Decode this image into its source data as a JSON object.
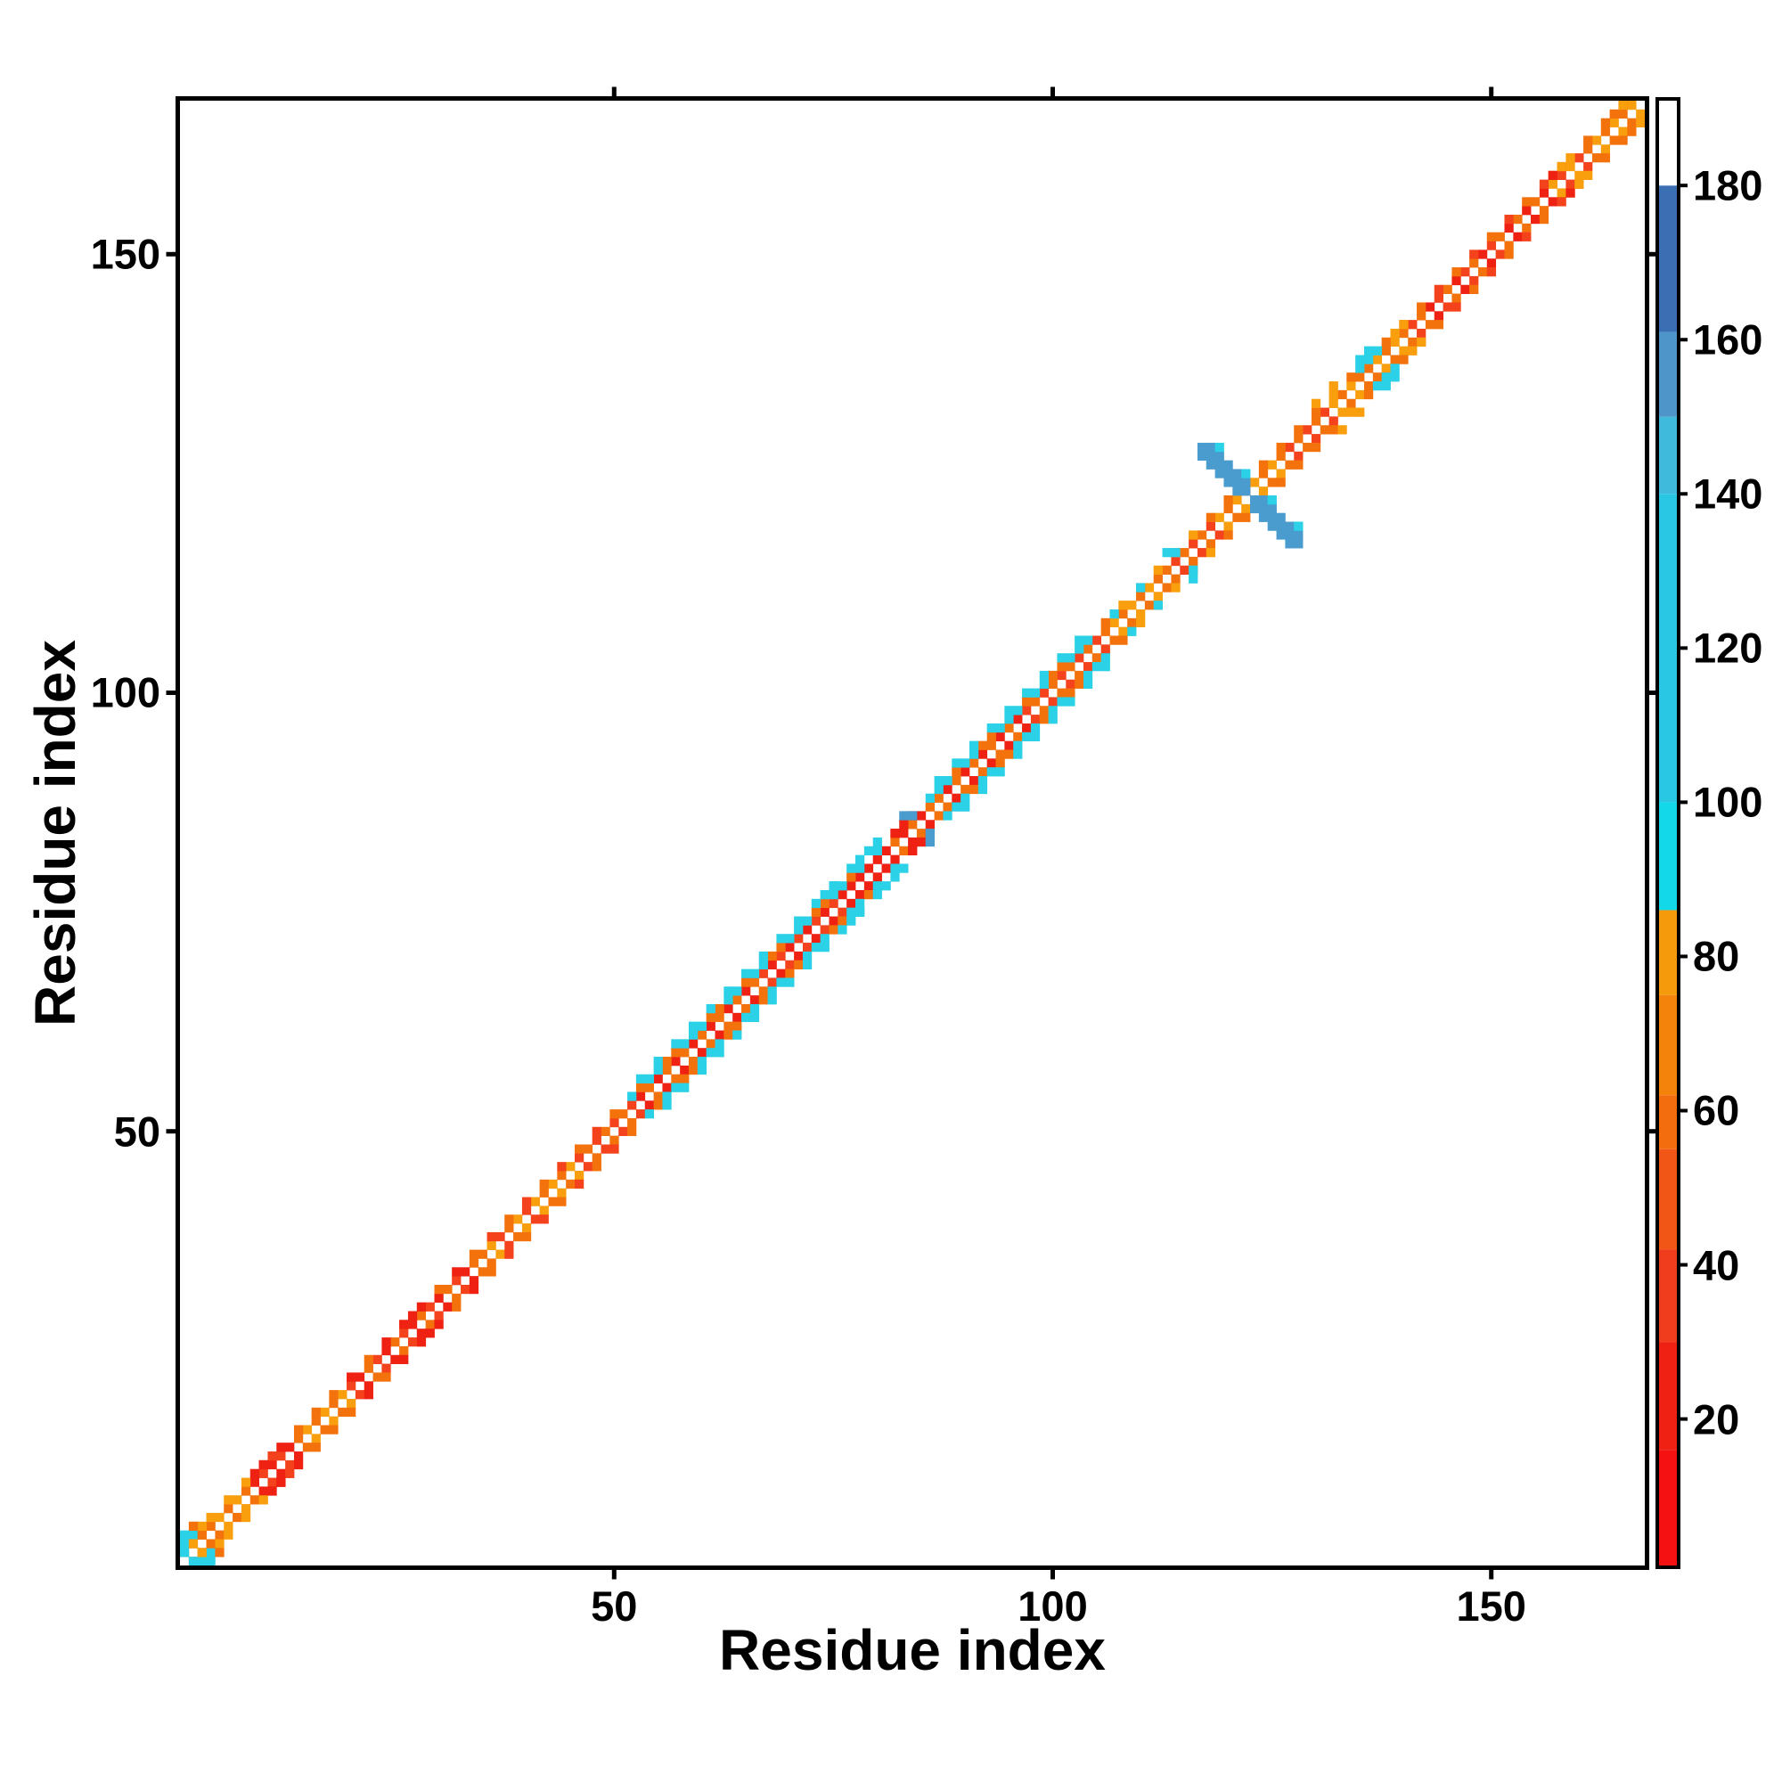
{
  "chart_data": {
    "type": "heatmap",
    "title": "",
    "xlabel": "Residue index",
    "ylabel": "Residue index",
    "x_range": [
      1,
      167
    ],
    "y_range": [
      1,
      167
    ],
    "xticks": [
      50,
      100,
      150
    ],
    "yticks": [
      50,
      100,
      150
    ],
    "grid": false,
    "legend_position": "right-colorbar",
    "colorbar": {
      "vmin": 1,
      "vmax": 191,
      "ticks": [
        20,
        40,
        60,
        80,
        100,
        120,
        140,
        160,
        180
      ],
      "bands": [
        {
          "lo": 1,
          "hi": 16,
          "color": "#f51111"
        },
        {
          "lo": 16,
          "hi": 30,
          "color": "#ee2113"
        },
        {
          "lo": 30,
          "hi": 42,
          "color": "#ef3d1d"
        },
        {
          "lo": 42,
          "hi": 55,
          "color": "#f25617"
        },
        {
          "lo": 55,
          "hi": 62,
          "color": "#f36d0e"
        },
        {
          "lo": 62,
          "hi": 75,
          "color": "#f4830b"
        },
        {
          "lo": 75,
          "hi": 86,
          "color": "#f59b0b"
        },
        {
          "lo": 86,
          "hi": 100,
          "color": "#12d8e9"
        },
        {
          "lo": 100,
          "hi": 140,
          "color": "#2ac7e2"
        },
        {
          "lo": 140,
          "hi": 150,
          "color": "#3fb9dc"
        },
        {
          "lo": 150,
          "hi": 161,
          "color": "#4e96c9"
        },
        {
          "lo": 161,
          "hi": 180,
          "color": "#3a6fb4"
        },
        {
          "lo": 180,
          "hi": 191,
          "color": "#ffffff"
        }
      ]
    },
    "palette": {
      "red": "#ee2113",
      "redOrange": "#f4431c",
      "orange": "#f4720c",
      "amber": "#f99e0c",
      "cyan": "#2bd1e6",
      "blue": "#4a9ccf"
    },
    "symmetric": true,
    "diagonal_runs": [
      {
        "o": 1,
        "s": 1,
        "e": 8,
        "c": [
          "amber",
          "orange"
        ]
      },
      {
        "o": 1,
        "s": 9,
        "e": 13,
        "c": [
          "red",
          "redOrange"
        ]
      },
      {
        "o": 1,
        "s": 14,
        "e": 19,
        "c": [
          "orange",
          "amber"
        ]
      },
      {
        "o": 1,
        "s": 20,
        "e": 34,
        "c": [
          "redOrange",
          "red",
          "orange"
        ]
      },
      {
        "o": 1,
        "s": 35,
        "e": 40,
        "c": [
          "orange",
          "amber",
          "redOrange"
        ]
      },
      {
        "o": 1,
        "s": 41,
        "e": 45,
        "c": [
          "amber",
          "orange"
        ]
      },
      {
        "o": 1,
        "s": 46,
        "e": 52,
        "c": [
          "redOrange",
          "orange"
        ]
      },
      {
        "o": 1,
        "s": 53,
        "e": 66,
        "c": [
          "red",
          "orange"
        ]
      },
      {
        "o": 1,
        "s": 67,
        "e": 75,
        "c": [
          "redOrange",
          "red"
        ]
      },
      {
        "o": 1,
        "s": 76,
        "e": 80,
        "c": [
          "red"
        ]
      },
      {
        "o": 1,
        "s": 81,
        "e": 86,
        "c": [
          "red",
          "orange"
        ]
      },
      {
        "o": 1,
        "s": 87,
        "e": 96,
        "c": [
          "orange",
          "red"
        ]
      },
      {
        "o": 1,
        "s": 97,
        "e": 105,
        "c": [
          "redOrange",
          "orange"
        ]
      },
      {
        "o": 1,
        "s": 106,
        "e": 112,
        "c": [
          "orange",
          "amber"
        ]
      },
      {
        "o": 1,
        "s": 113,
        "e": 118,
        "c": [
          "orange",
          "redOrange"
        ]
      },
      {
        "o": 1,
        "s": 119,
        "e": 126,
        "c": [
          "amber",
          "orange"
        ]
      },
      {
        "o": 1,
        "s": 127,
        "e": 131,
        "c": [
          "redOrange",
          "orange"
        ]
      },
      {
        "o": 1,
        "s": 132,
        "e": 135,
        "c": [
          "amber",
          "orange"
        ]
      },
      {
        "o": 1,
        "s": 136,
        "e": 140,
        "c": [
          "orange",
          "amber"
        ]
      },
      {
        "o": 1,
        "s": 141,
        "e": 150,
        "c": [
          "redOrange",
          "orange",
          "red"
        ]
      },
      {
        "o": 1,
        "s": 151,
        "e": 156,
        "c": [
          "orange",
          "red"
        ]
      },
      {
        "o": 1,
        "s": 157,
        "e": 160,
        "c": [
          "amber",
          "redOrange"
        ]
      },
      {
        "o": 1,
        "s": 161,
        "e": 166,
        "c": [
          "orange",
          "amber"
        ]
      },
      {
        "o": 2,
        "s": 2,
        "e": 8,
        "st": 2,
        "c": [
          "amber"
        ]
      },
      {
        "o": 2,
        "s": 10,
        "e": 12,
        "st": 2,
        "c": [
          "red"
        ]
      },
      {
        "o": 2,
        "s": 14,
        "e": 18,
        "st": 2,
        "c": [
          "orange"
        ]
      },
      {
        "o": 2,
        "s": 20,
        "e": 32,
        "st": 2,
        "c": [
          "red",
          "orange"
        ]
      },
      {
        "o": 2,
        "s": 34,
        "e": 50,
        "st": 2,
        "c": [
          "orange",
          "redOrange"
        ]
      },
      {
        "o": 2,
        "s": 52,
        "e": 78,
        "st": 2,
        "c": [
          "cyan",
          "cyan",
          "orange"
        ]
      },
      {
        "o": 2,
        "s": 53,
        "e": 77,
        "st": 2,
        "c": [
          "orange",
          "cyan"
        ]
      },
      {
        "o": 2,
        "s": 80,
        "e": 84,
        "st": 2,
        "c": [
          "red"
        ]
      },
      {
        "o": 2,
        "s": 86,
        "e": 104,
        "st": 2,
        "c": [
          "cyan",
          "cyan",
          "cyan",
          "orange"
        ]
      },
      {
        "o": 2,
        "s": 87,
        "e": 103,
        "st": 2,
        "c": [
          "cyan",
          "orange"
        ]
      },
      {
        "o": 2,
        "s": 106,
        "e": 118,
        "st": 2,
        "c": [
          "orange",
          "amber"
        ]
      },
      {
        "o": 2,
        "s": 120,
        "e": 128,
        "st": 2,
        "c": [
          "orange"
        ]
      },
      {
        "o": 2,
        "s": 130,
        "e": 134,
        "st": 2,
        "c": [
          "orange",
          "amber"
        ]
      },
      {
        "o": 2,
        "s": 136,
        "e": 140,
        "st": 2,
        "c": [
          "orange"
        ]
      },
      {
        "o": 2,
        "s": 142,
        "e": 156,
        "st": 2,
        "c": [
          "orange",
          "redOrange"
        ]
      },
      {
        "o": 2,
        "s": 157,
        "e": 159,
        "c": [
          "amber",
          "orange"
        ]
      },
      {
        "o": 2,
        "s": 161,
        "e": 165,
        "st": 2,
        "c": [
          "orange"
        ]
      },
      {
        "o": 3,
        "s": 53,
        "e": 77,
        "st": 2,
        "c": [
          "cyan"
        ]
      },
      {
        "o": 3,
        "s": 87,
        "e": 103,
        "st": 2,
        "c": [
          "cyan"
        ]
      },
      {
        "o": 3,
        "s": 130,
        "e": 132,
        "st": 2,
        "c": [
          "amber"
        ]
      }
    ],
    "extra_cells": [
      [
        1,
        2,
        "cyan"
      ],
      [
        1,
        3,
        "cyan"
      ],
      [
        1,
        4,
        "cyan"
      ],
      [
        2,
        4,
        "cyan"
      ],
      [
        2,
        3,
        "amber"
      ],
      [
        3,
        4,
        "orange"
      ],
      [
        3,
        5,
        "amber"
      ],
      [
        2,
        5,
        "orange"
      ],
      [
        9,
        11,
        "red"
      ],
      [
        10,
        12,
        "red"
      ],
      [
        11,
        13,
        "redOrange"
      ],
      [
        26,
        28,
        "red"
      ],
      [
        27,
        29,
        "red"
      ],
      [
        74,
        77,
        "cyan"
      ],
      [
        75,
        78,
        "cyan"
      ],
      [
        78,
        81,
        "cyan"
      ],
      [
        79,
        82,
        "cyan"
      ],
      [
        80,
        82,
        "cyan"
      ],
      [
        80,
        83,
        "cyan"
      ],
      [
        82,
        84,
        "red"
      ],
      [
        83,
        85,
        "red"
      ],
      [
        83,
        86,
        "blue"
      ],
      [
        84,
        86,
        "blue"
      ],
      [
        107,
        109,
        "cyan"
      ],
      [
        110,
        112,
        "cyan"
      ],
      [
        113,
        116,
        "cyan"
      ],
      [
        114,
        116,
        "cyan"
      ],
      [
        117,
        128,
        "blue"
      ],
      [
        118,
        128,
        "blue"
      ],
      [
        117,
        127,
        "blue"
      ],
      [
        118,
        127,
        "blue"
      ],
      [
        119,
        127,
        "blue"
      ],
      [
        118,
        126,
        "blue"
      ],
      [
        119,
        126,
        "blue"
      ],
      [
        120,
        126,
        "blue"
      ],
      [
        119,
        125,
        "blue"
      ],
      [
        120,
        125,
        "blue"
      ],
      [
        121,
        125,
        "blue"
      ],
      [
        120,
        124,
        "blue"
      ],
      [
        121,
        124,
        "blue"
      ],
      [
        122,
        124,
        "blue"
      ],
      [
        121,
        123,
        "blue"
      ],
      [
        122,
        123,
        "blue"
      ],
      [
        119,
        128,
        "cyan"
      ],
      [
        122,
        125,
        "cyan"
      ],
      [
        135,
        137,
        "cyan"
      ],
      [
        135,
        138,
        "cyan"
      ],
      [
        136,
        138,
        "cyan"
      ],
      [
        136,
        139,
        "cyan"
      ],
      [
        137,
        139,
        "cyan"
      ],
      [
        139,
        141,
        "amber"
      ],
      [
        140,
        142,
        "amber"
      ],
      [
        157,
        159,
        "red"
      ],
      [
        158,
        160,
        "amber"
      ],
      [
        164,
        166,
        "orange"
      ],
      [
        165,
        167,
        "amber"
      ]
    ]
  },
  "labels": {
    "x_axis": "Residue index",
    "y_axis": "Residue index"
  }
}
